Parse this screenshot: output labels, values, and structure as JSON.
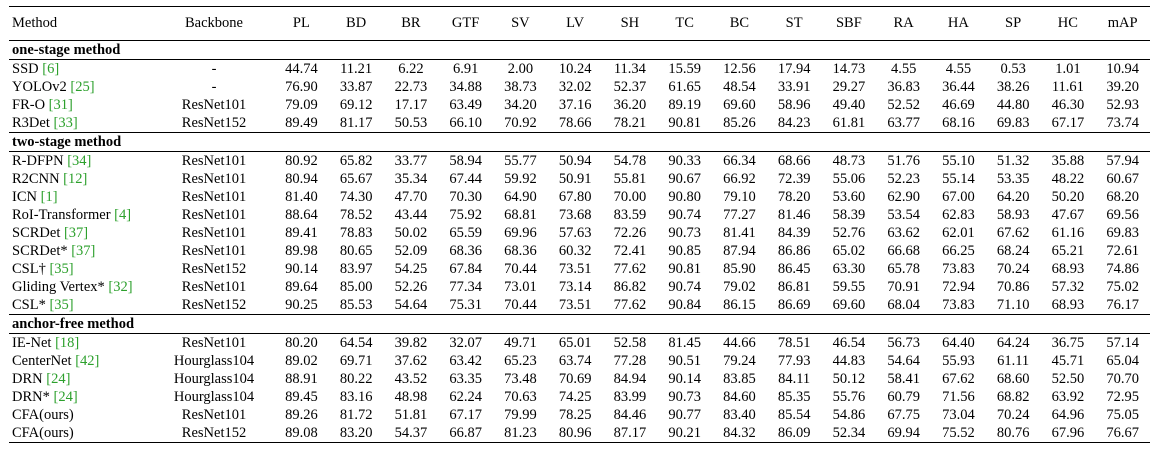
{
  "columns": [
    "Method",
    "Backbone",
    "PL",
    "BD",
    "BR",
    "GTF",
    "SV",
    "LV",
    "SH",
    "TC",
    "BC",
    "ST",
    "SBF",
    "RA",
    "HA",
    "SP",
    "HC",
    "mAP"
  ],
  "groups": [
    {
      "title": "one-stage method",
      "rows": [
        {
          "method": "SSD ",
          "ref": "[6]",
          "backbone": "-",
          "values": [
            "44.74",
            "11.21",
            "6.22",
            "6.91",
            "2.00",
            "10.24",
            "11.34",
            "15.59",
            "12.56",
            "17.94",
            "14.73",
            "4.55",
            "4.55",
            "0.53",
            "1.01",
            "10.94"
          ],
          "bold": []
        },
        {
          "method": "YOLOv2 ",
          "ref": "[25]",
          "backbone": "-",
          "values": [
            "76.90",
            "33.87",
            "22.73",
            "34.88",
            "38.73",
            "32.02",
            "52.37",
            "61.65",
            "48.54",
            "33.91",
            "29.27",
            "36.83",
            "36.44",
            "38.26",
            "11.61",
            "39.20"
          ],
          "bold": []
        },
        {
          "method": "FR-O ",
          "ref": "[31]",
          "backbone": "ResNet101",
          "values": [
            "79.09",
            "69.12",
            "17.17",
            "63.49",
            "34.20",
            "37.16",
            "36.20",
            "89.19",
            "69.60",
            "58.96",
            "49.40",
            "52.52",
            "46.69",
            "44.80",
            "46.30",
            "52.93"
          ],
          "bold": []
        },
        {
          "method": "R3Det ",
          "ref": "[33]",
          "backbone": "ResNet152",
          "values": [
            "89.49",
            "81.17",
            "50.53",
            "66.10",
            "70.92",
            "78.66",
            "78.21",
            "90.81",
            "85.26",
            "84.23",
            "61.81",
            "63.77",
            "68.16",
            "69.83",
            "67.17",
            "73.74"
          ],
          "bold": []
        }
      ]
    },
    {
      "title": "two-stage method",
      "rows": [
        {
          "method": "R-DFPN ",
          "ref": "[34]",
          "backbone": "ResNet101",
          "values": [
            "80.92",
            "65.82",
            "33.77",
            "58.94",
            "55.77",
            "50.94",
            "54.78",
            "90.33",
            "66.34",
            "68.66",
            "48.73",
            "51.76",
            "55.10",
            "51.32",
            "35.88",
            "57.94"
          ],
          "bold": []
        },
        {
          "method": "R2CNN ",
          "ref": "[12]",
          "backbone": "ResNet101",
          "values": [
            "80.94",
            "65.67",
            "35.34",
            "67.44",
            "59.92",
            "50.91",
            "55.81",
            "90.67",
            "66.92",
            "72.39",
            "55.06",
            "52.23",
            "55.14",
            "53.35",
            "48.22",
            "60.67"
          ],
          "bold": []
        },
        {
          "method": "ICN ",
          "ref": "[1]",
          "backbone": "ResNet101",
          "values": [
            "81.40",
            "74.30",
            "47.70",
            "70.30",
            "64.90",
            "67.80",
            "70.00",
            "90.80",
            "79.10",
            "78.20",
            "53.60",
            "62.90",
            "67.00",
            "64.20",
            "50.20",
            "68.20"
          ],
          "bold": []
        },
        {
          "method": "RoI-Transformer ",
          "ref": "[4]",
          "backbone": "ResNet101",
          "values": [
            "88.64",
            "78.52",
            "43.44",
            "75.92",
            "68.81",
            "73.68",
            "83.59",
            "90.74",
            "77.27",
            "81.46",
            "58.39",
            "53.54",
            "62.83",
            "58.93",
            "47.67",
            "69.56"
          ],
          "bold": []
        },
        {
          "method": "SCRDet ",
          "ref": "[37]",
          "backbone": "ResNet101",
          "values": [
            "89.41",
            "78.83",
            "50.02",
            "65.59",
            "69.96",
            "57.63",
            "72.26",
            "90.73",
            "81.41",
            "84.39",
            "52.76",
            "63.62",
            "62.01",
            "67.62",
            "61.16",
            "69.83"
          ],
          "bold": []
        },
        {
          "method": "SCRDet* ",
          "ref": "[37]",
          "backbone": "ResNet101",
          "values": [
            "89.98",
            "80.65",
            "52.09",
            "68.36",
            "68.36",
            "60.32",
            "72.41",
            "90.85",
            "87.94",
            "86.86",
            "65.02",
            "66.68",
            "66.25",
            "68.24",
            "65.21",
            "72.61"
          ],
          "bold": [
            7,
            8,
            9,
            10
          ]
        },
        {
          "method": "CSL† ",
          "ref": "[35]",
          "backbone": "ResNet152",
          "values": [
            "90.14",
            "83.97",
            "54.25",
            "67.84",
            "70.44",
            "73.51",
            "77.62",
            "90.81",
            "85.90",
            "86.45",
            "63.30",
            "65.78",
            "73.83",
            "70.24",
            "68.93",
            "74.86"
          ],
          "bold": [
            0,
            14
          ]
        },
        {
          "method": "Gliding Vertex* ",
          "ref": "[32]",
          "backbone": "ResNet101",
          "values": [
            "89.64",
            "85.00",
            "52.26",
            "77.34",
            "73.01",
            "73.14",
            "86.82",
            "90.74",
            "79.02",
            "86.81",
            "59.55",
            "70.91",
            "72.94",
            "70.86",
            "57.32",
            "75.02"
          ],
          "bold": [
            1,
            3,
            11
          ]
        },
        {
          "method": "CSL* ",
          "ref": "[35]",
          "backbone": "ResNet152",
          "values": [
            "90.25",
            "85.53",
            "54.64",
            "75.31",
            "70.44",
            "73.51",
            "77.62",
            "90.84",
            "86.15",
            "86.69",
            "69.60",
            "68.04",
            "73.83",
            "71.10",
            "68.93",
            "76.17"
          ],
          "bold": []
        }
      ]
    },
    {
      "title": "anchor-free method",
      "rows": [
        {
          "method": "IE-Net ",
          "ref": "[18]",
          "backbone": "ResNet101",
          "values": [
            "80.20",
            "64.54",
            "39.82",
            "32.07",
            "49.71",
            "65.01",
            "52.58",
            "81.45",
            "44.66",
            "78.51",
            "46.54",
            "56.73",
            "64.40",
            "64.24",
            "36.75",
            "57.14"
          ],
          "bold": []
        },
        {
          "method": "CenterNet ",
          "ref": "[42]",
          "backbone": "Hourglass104",
          "values": [
            "89.02",
            "69.71",
            "37.62",
            "63.42",
            "65.23",
            "63.74",
            "77.28",
            "90.51",
            "79.24",
            "77.93",
            "44.83",
            "54.64",
            "55.93",
            "61.11",
            "45.71",
            "65.04"
          ],
          "bold": []
        },
        {
          "method": "DRN ",
          "ref": "[24]",
          "backbone": "Hourglass104",
          "values": [
            "88.91",
            "80.22",
            "43.52",
            "63.35",
            "73.48",
            "70.69",
            "84.94",
            "90.14",
            "83.85",
            "84.11",
            "50.12",
            "58.41",
            "67.62",
            "68.60",
            "52.50",
            "70.70"
          ],
          "bold": []
        },
        {
          "method": "DRN* ",
          "ref": "[24]",
          "backbone": "Hourglass104",
          "values": [
            "89.45",
            "83.16",
            "48.98",
            "62.24",
            "70.63",
            "74.25",
            "83.99",
            "90.73",
            "84.60",
            "85.35",
            "55.76",
            "60.79",
            "71.56",
            "68.82",
            "63.92",
            "72.95"
          ],
          "bold": []
        },
        {
          "method": "CFA(ours)",
          "ref": "",
          "backbone": "ResNet101",
          "values": [
            "89.26",
            "81.72",
            "51.81",
            "67.17",
            "79.99",
            "78.25",
            "84.46",
            "90.77",
            "83.40",
            "85.54",
            "54.86",
            "67.75",
            "73.04",
            "70.24",
            "64.96",
            "75.05"
          ],
          "bold": []
        },
        {
          "method": "CFA(ours)",
          "ref": "",
          "backbone": "ResNet152",
          "values": [
            "89.08",
            "83.20",
            "54.37",
            "66.87",
            "81.23",
            "80.96",
            "87.17",
            "90.21",
            "84.32",
            "86.09",
            "52.34",
            "69.94",
            "75.52",
            "80.76",
            "67.96",
            "76.67"
          ],
          "bold": [
            2,
            4,
            5,
            6,
            12,
            13,
            15
          ]
        }
      ]
    }
  ]
}
